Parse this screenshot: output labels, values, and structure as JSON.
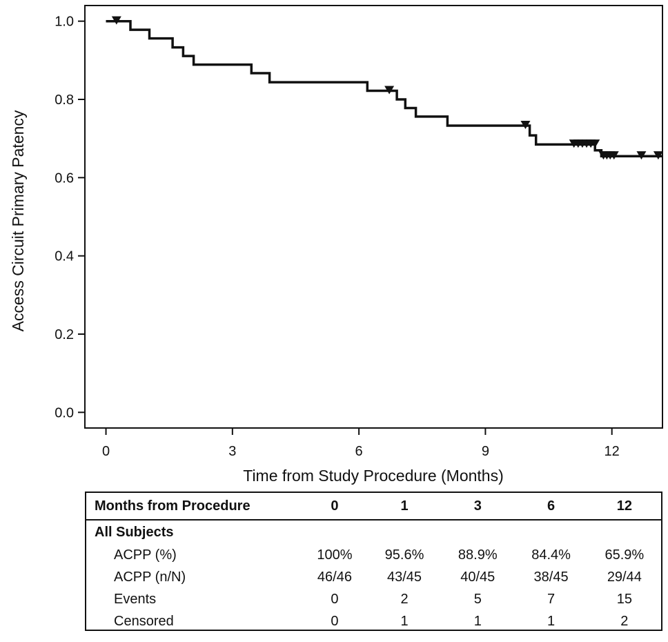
{
  "chart_data": {
    "type": "line",
    "xlabel": "Time from Study Procedure (Months)",
    "ylabel": "Access Circuit Primary Patency",
    "xlim": [
      -0.5,
      13.2
    ],
    "ylim": [
      -0.04,
      1.04
    ],
    "x_ticks": [
      0,
      3,
      6,
      9,
      12
    ],
    "x_tick_labels": [
      "0",
      "3",
      "6",
      "9",
      "12"
    ],
    "y_ticks": [
      0.0,
      0.2,
      0.4,
      0.6,
      0.8,
      1.0
    ],
    "y_tick_labels": [
      "0.0",
      "0.2",
      "0.4",
      "0.6",
      "0.8",
      "1.0"
    ],
    "grid": false,
    "series": [
      {
        "step": true,
        "x": [
          0,
          0.58,
          1.03,
          1.58,
          1.83,
          2.08,
          3.45,
          3.88,
          6.2,
          6.9,
          7.1,
          7.35,
          8.1,
          10.05,
          10.2,
          11.6,
          11.75,
          13.2
        ],
        "y": [
          1.0,
          0.978,
          0.956,
          0.933,
          0.911,
          0.889,
          0.867,
          0.844,
          0.822,
          0.8,
          0.778,
          0.756,
          0.733,
          0.708,
          0.685,
          0.67,
          0.655,
          0.655
        ]
      }
    ],
    "censored": {
      "x": [
        0.25,
        6.72,
        9.95,
        11.1,
        11.2,
        11.3,
        11.4,
        11.5,
        11.6,
        11.8,
        11.88,
        11.96,
        12.05,
        12.7,
        13.1
      ],
      "y": [
        1.0,
        0.822,
        0.733,
        0.685,
        0.685,
        0.685,
        0.685,
        0.685,
        0.685,
        0.655,
        0.655,
        0.655,
        0.655,
        0.655,
        0.655
      ]
    }
  },
  "risk_table": {
    "header": [
      "Months from Procedure",
      "0",
      "1",
      "3",
      "6",
      "12"
    ],
    "group": "All Subjects",
    "rows": [
      {
        "label": "ACPP (%)",
        "values": [
          "100%",
          "95.6%",
          "88.9%",
          "84.4%",
          "65.9%"
        ]
      },
      {
        "label": "ACPP (n/N)",
        "values": [
          "46/46",
          "43/45",
          "40/45",
          "38/45",
          "29/44"
        ]
      },
      {
        "label": "Events",
        "values": [
          "0",
          "2",
          "5",
          "7",
          "15"
        ]
      },
      {
        "label": "Censored",
        "values": [
          "0",
          "1",
          "1",
          "1",
          "2"
        ]
      }
    ]
  }
}
